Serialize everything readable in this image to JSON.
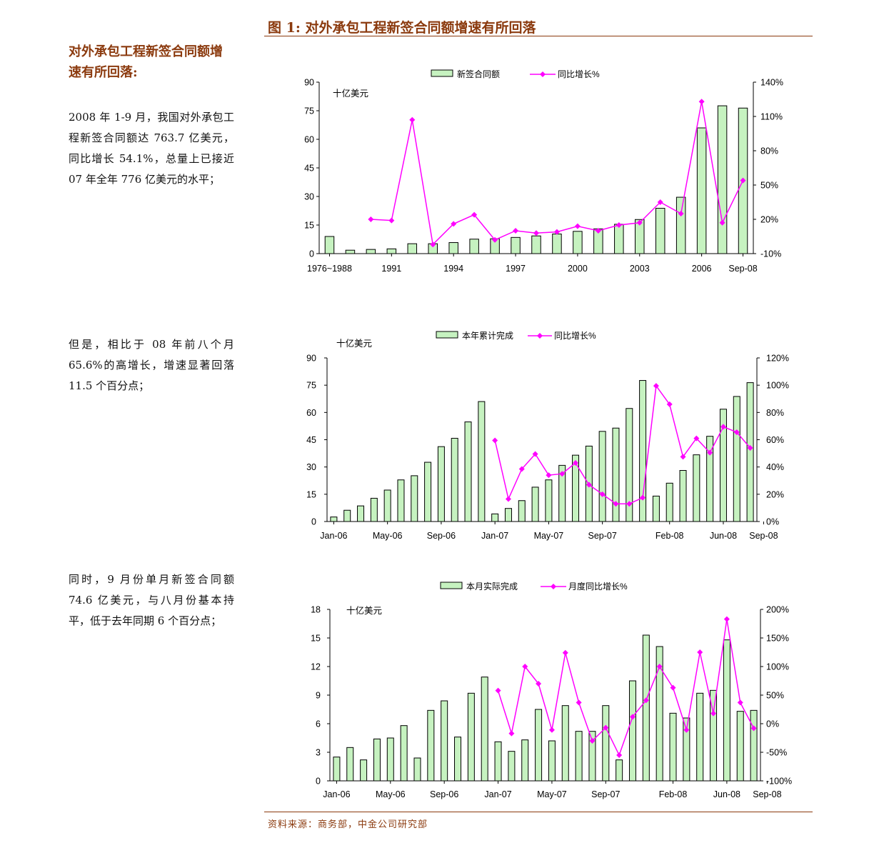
{
  "figure": {
    "title": "图 1:  对外承包工程新签合同额增速有所回落",
    "source": "资料来源：商务部，中金公司研究部"
  },
  "side": {
    "heading": "对外承包工程新签合同额增速有所回落:",
    "paragraphs": [
      "2008 年 1-9 月，我国对外承包工程新签合同额达 763.7 亿美元，同比增长 54.1%，总量上已接近 07 年全年 776 亿美元的水平；",
      "但是，相比于 08 年前八个月 65.6%的高增长，增速显著回落 11.5 个百分点；",
      "同时，9 月份单月新签合同额 74.6 亿美元，与八月份基本持平，低于去年同期 6 个百分点；"
    ]
  },
  "colors": {
    "bar_fill": "#C6F2C0",
    "bar_stroke": "#000000",
    "line": "#FF00FF",
    "accent": "#8B3A0E"
  },
  "chart_data": [
    {
      "type": "bar",
      "title": "",
      "unit_label": "十亿美元",
      "x_tick_labels": [
        "1976~1988",
        "1991",
        "1994",
        "1997",
        "2000",
        "2003",
        "2006",
        "Sep-08"
      ],
      "x_tick_index": [
        0,
        3,
        6,
        9,
        12,
        15,
        18,
        20
      ],
      "left_axis": {
        "ylim": [
          0,
          90
        ],
        "ticks": [
          "0",
          "15",
          "30",
          "45",
          "60",
          "75",
          "90"
        ]
      },
      "right_axis": {
        "ylim": [
          -10,
          140
        ],
        "ticks": [
          "-10%",
          "20%",
          "50%",
          "80%",
          "110%",
          "140%"
        ]
      },
      "series": [
        {
          "name": "新签合同额",
          "kind": "bar",
          "axis": "left",
          "values": [
            9,
            1.8,
            2.2,
            2.5,
            5.2,
            5.2,
            5.8,
            7.6,
            7.8,
            8.5,
            9.3,
            10.3,
            11.7,
            13,
            15.4,
            17.9,
            23.8,
            29.6,
            66,
            77.6,
            76.4
          ]
        },
        {
          "name": "同比增长%",
          "kind": "line",
          "axis": "right",
          "values": [
            null,
            null,
            20,
            19,
            107,
            -2,
            16,
            24,
            2,
            10,
            8,
            9,
            14,
            10,
            15,
            17,
            35,
            25,
            123,
            17,
            54
          ]
        }
      ],
      "legend": "top-center"
    },
    {
      "type": "bar",
      "title": "",
      "unit_label": "十亿美元",
      "x_tick_labels": [
        "Jan-06",
        "May-06",
        "Sep-06",
        "Jan-07",
        "May-07",
        "Sep-07",
        "Feb-08",
        "Jun-08",
        "Sep-08"
      ],
      "x_tick_index": [
        0,
        4,
        8,
        12,
        16,
        20,
        25,
        29,
        32
      ],
      "left_axis": {
        "ylim": [
          0,
          90
        ],
        "ticks": [
          "0",
          "15",
          "30",
          "45",
          "60",
          "75",
          "90"
        ]
      },
      "right_axis": {
        "ylim": [
          0,
          120
        ],
        "ticks": [
          "0%",
          "20%",
          "40%",
          "60%",
          "80%",
          "100%",
          "120%"
        ]
      },
      "series": [
        {
          "name": "本年累计完成",
          "kind": "bar",
          "axis": "left",
          "values": [
            2.5,
            6.2,
            8.6,
            12.8,
            17.3,
            22.9,
            25.2,
            32.6,
            41.2,
            45.8,
            54.8,
            66,
            4.2,
            7.2,
            11.5,
            18.9,
            22.9,
            30.9,
            36.5,
            41.5,
            49.6,
            51.4,
            62.2,
            77.6,
            14,
            21.1,
            28.1,
            36.7,
            46.9,
            61.8,
            68.8,
            76.4
          ]
        },
        {
          "name": "同比增长%",
          "kind": "line",
          "axis": "right",
          "values": [
            null,
            null,
            null,
            null,
            null,
            null,
            null,
            null,
            null,
            null,
            null,
            null,
            59.5,
            16.5,
            38.5,
            49.5,
            34,
            35,
            43,
            27,
            20,
            13,
            13,
            17.5,
            99.5,
            86,
            47.5,
            61,
            50.5,
            69.5,
            65.5,
            54
          ]
        }
      ],
      "legend": "top-center"
    },
    {
      "type": "bar",
      "title": "",
      "unit_label": "十亿美元",
      "x_tick_labels": [
        "Jan-06",
        "May-06",
        "Sep-06",
        "Jan-07",
        "May-07",
        "Sep-07",
        "Feb-08",
        "Jun-08",
        "Sep-08"
      ],
      "x_tick_index": [
        0,
        4,
        8,
        12,
        16,
        20,
        25,
        29,
        32
      ],
      "left_axis": {
        "ylim": [
          0,
          18
        ],
        "ticks": [
          "0",
          "3",
          "6",
          "9",
          "12",
          "15",
          "18"
        ]
      },
      "right_axis": {
        "ylim": [
          -100,
          200
        ],
        "ticks": [
          "-100%",
          "-50%",
          "0%",
          "50%",
          "100%",
          "150%",
          "200%"
        ]
      },
      "series": [
        {
          "name": "本月实际完成",
          "kind": "bar",
          "axis": "left",
          "values": [
            2.5,
            3.5,
            2.2,
            4.4,
            4.5,
            5.8,
            2.4,
            7.4,
            8.4,
            4.6,
            9.2,
            10.9,
            4.1,
            3.1,
            4.3,
            7.5,
            4.2,
            7.9,
            5.2,
            5.2,
            7.9,
            2.2,
            10.5,
            15.3,
            14.1,
            7.1,
            6.6,
            9.2,
            9.5,
            14.8,
            7.3,
            7.4
          ]
        },
        {
          "name": "月度同比增长%",
          "kind": "line",
          "axis": "right",
          "values": [
            null,
            null,
            null,
            null,
            null,
            null,
            null,
            null,
            null,
            null,
            null,
            null,
            58,
            -17,
            100,
            70,
            -11,
            124,
            37,
            -30,
            -7,
            -55,
            12,
            41,
            100,
            63,
            -11,
            125,
            18,
            183,
            37,
            -8
          ]
        }
      ],
      "legend": "top-center"
    }
  ]
}
